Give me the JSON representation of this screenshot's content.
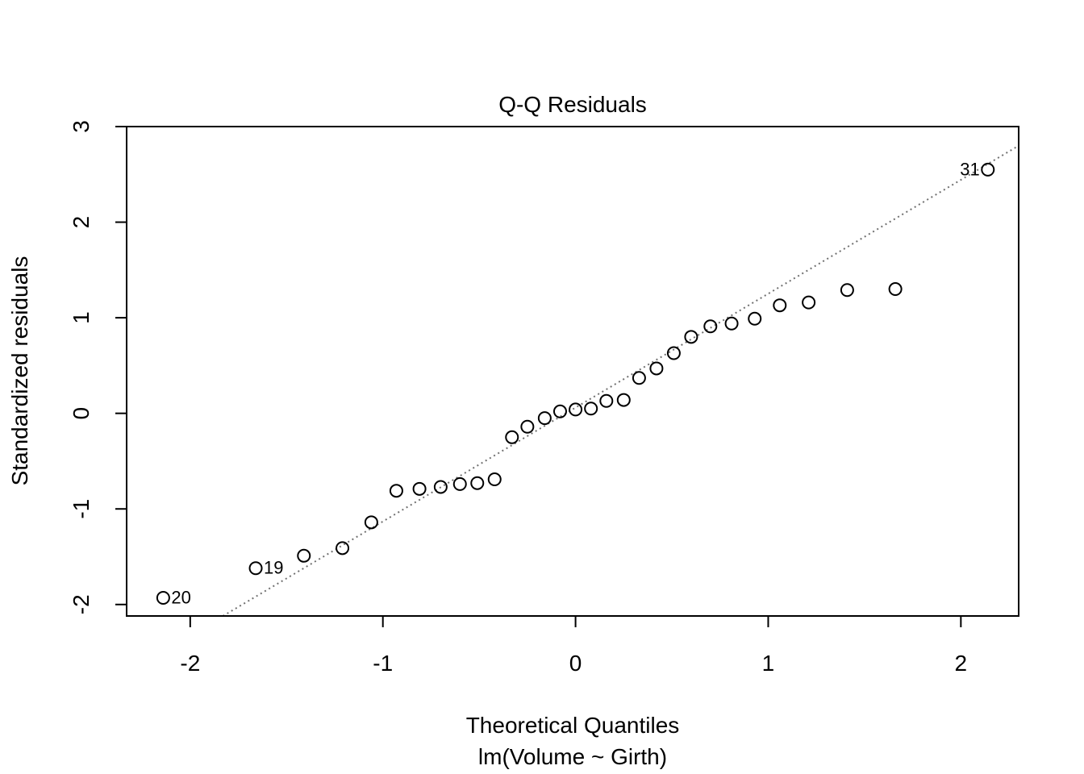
{
  "chart_data": {
    "type": "scatter",
    "title": "Q-Q Residuals",
    "xlabel": "Theoretical Quantiles",
    "subtitle": "lm(Volume ~ Girth)",
    "ylabel": "Standardized residuals",
    "xlim": [
      -2.33,
      2.3
    ],
    "ylim": [
      -2.12,
      3.0
    ],
    "x_ticks": [
      -2,
      -1,
      0,
      1,
      2
    ],
    "x_tick_labels": [
      "-2",
      "-1",
      "0",
      "1",
      "2"
    ],
    "y_ticks": [
      -2,
      -1,
      0,
      1,
      2,
      3
    ],
    "y_tick_labels": [
      "-2",
      "-1",
      "0",
      "1",
      "2",
      "3"
    ],
    "grid": false,
    "reference_line": {
      "style": "dotted",
      "color": "#707070",
      "x": [
        -1.83,
        2.3
      ],
      "y": [
        -2.12,
        2.8
      ]
    },
    "points": [
      {
        "x": -2.14,
        "y": -1.93,
        "label": "20"
      },
      {
        "x": -1.66,
        "y": -1.62,
        "label": "19"
      },
      {
        "x": -1.41,
        "y": -1.49
      },
      {
        "x": -1.21,
        "y": -1.41
      },
      {
        "x": -1.06,
        "y": -1.14
      },
      {
        "x": -0.93,
        "y": -0.81
      },
      {
        "x": -0.81,
        "y": -0.79
      },
      {
        "x": -0.7,
        "y": -0.77
      },
      {
        "x": -0.6,
        "y": -0.74
      },
      {
        "x": -0.51,
        "y": -0.73
      },
      {
        "x": -0.42,
        "y": -0.69
      },
      {
        "x": -0.33,
        "y": -0.25
      },
      {
        "x": -0.25,
        "y": -0.14
      },
      {
        "x": -0.16,
        "y": -0.05
      },
      {
        "x": -0.08,
        "y": 0.02
      },
      {
        "x": 0.0,
        "y": 0.04
      },
      {
        "x": 0.08,
        "y": 0.05
      },
      {
        "x": 0.16,
        "y": 0.13
      },
      {
        "x": 0.25,
        "y": 0.14
      },
      {
        "x": 0.33,
        "y": 0.37
      },
      {
        "x": 0.42,
        "y": 0.47
      },
      {
        "x": 0.51,
        "y": 0.63
      },
      {
        "x": 0.6,
        "y": 0.8
      },
      {
        "x": 0.7,
        "y": 0.91
      },
      {
        "x": 0.81,
        "y": 0.94
      },
      {
        "x": 0.93,
        "y": 0.99
      },
      {
        "x": 1.06,
        "y": 1.13
      },
      {
        "x": 1.21,
        "y": 1.16
      },
      {
        "x": 1.41,
        "y": 1.29
      },
      {
        "x": 1.66,
        "y": 1.3
      },
      {
        "x": 2.14,
        "y": 2.55,
        "label": "31"
      }
    ]
  }
}
